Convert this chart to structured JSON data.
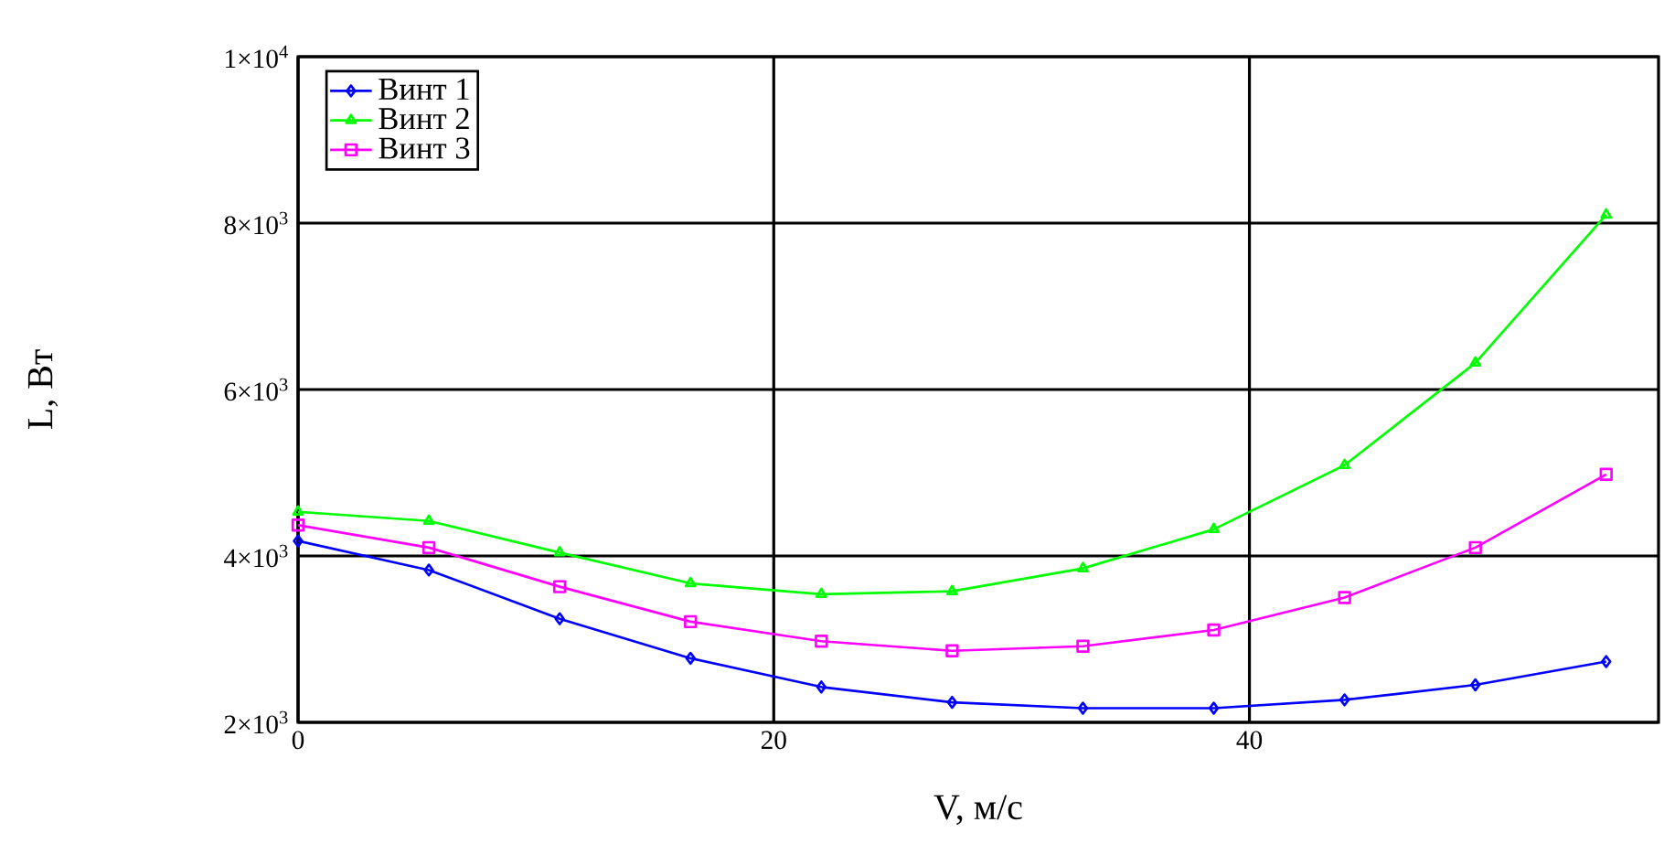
{
  "chart_data": {
    "type": "line",
    "xlabel": "V, м/с",
    "ylabel": "L, Вт",
    "x": [
      0,
      5.5,
      11,
      16.5,
      22,
      27.5,
      33,
      38.5,
      44,
      49.5,
      55
    ],
    "series": [
      {
        "name": "Винт 1",
        "color": "#0000ff",
        "marker": "diamond",
        "values": [
          4180,
          3830,
          3245,
          2770,
          2425,
          2240,
          2170,
          2170,
          2270,
          2450,
          2730
        ]
      },
      {
        "name": "Винт 2",
        "color": "#00ff00",
        "marker": "triangle",
        "values": [
          4530,
          4420,
          4040,
          3670,
          3540,
          3575,
          3850,
          4320,
          5090,
          6320,
          8100
        ]
      },
      {
        "name": "Винт 3",
        "color": "#ff00ff",
        "marker": "square",
        "values": [
          4370,
          4100,
          3630,
          3210,
          2975,
          2860,
          2915,
          3110,
          3500,
          4100,
          4980
        ]
      }
    ],
    "xlim": [
      0,
      57.2
    ],
    "ylim": [
      2000,
      10000
    ],
    "xticks": [
      0,
      20,
      40
    ],
    "yticks": [
      {
        "value": 2000,
        "label": "2×10$^{3}$"
      },
      {
        "value": 4000,
        "label": "4×10$^{3}$"
      },
      {
        "value": 6000,
        "label": "6×10$^{3}$"
      },
      {
        "value": 8000,
        "label": "8×10$^{3}$"
      },
      {
        "value": 10000,
        "label": "1×10$^{4}$"
      }
    ],
    "grid": true,
    "legend": "top left",
    "line_style": "solid"
  }
}
